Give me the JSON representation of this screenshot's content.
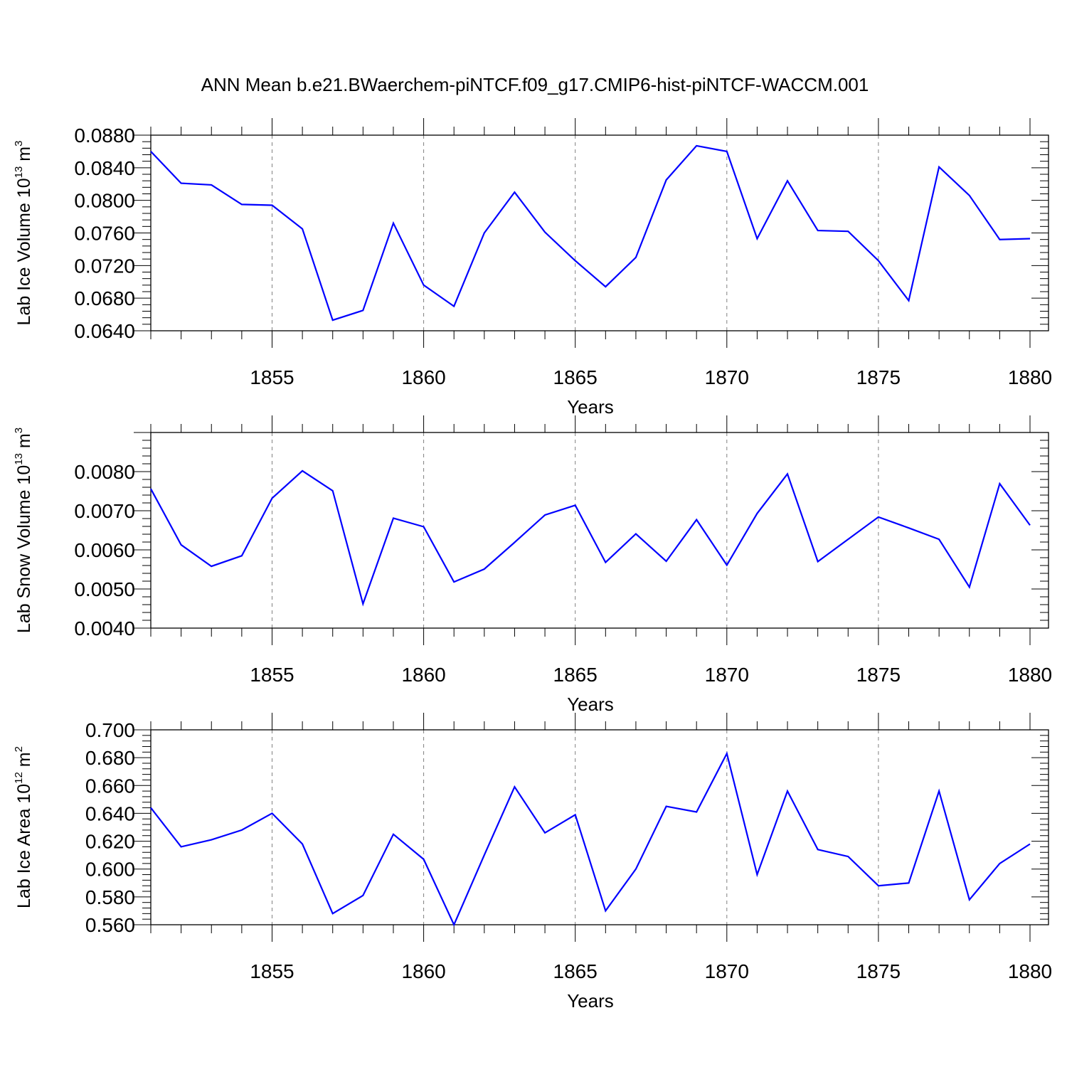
{
  "title": "ANN Mean b.e21.BWaerchem-piNTCF.f09_g17.CMIP6-hist-piNTCF-WACCM.001",
  "colors": {
    "line": "#0000ff",
    "axis": "#000000",
    "grid": "#808080"
  },
  "chart_data": [
    {
      "type": "line",
      "ylabel": {
        "text": "Lab Ice Volume 10",
        "exp": "13",
        "unit": " m",
        "unit_exp": "3"
      },
      "xlabel": "Years",
      "xlim": [
        1851,
        1880
      ],
      "ylim": [
        0.064,
        0.088
      ],
      "ytick_values": [
        0.064,
        0.068,
        0.072,
        0.076,
        0.08,
        0.084,
        0.088
      ],
      "yticks": [
        "0.0640",
        "0.0680",
        "0.0720",
        "0.0760",
        "0.0800",
        "0.0840",
        "0.0880"
      ],
      "ygrid": false,
      "xgrid": "dashed at major ticks",
      "xticks": [
        "1855",
        "1860",
        "1865",
        "1870",
        "1875",
        "1880"
      ],
      "xtick_values": [
        1855,
        1860,
        1865,
        1870,
        1875,
        1880
      ],
      "series": [
        {
          "x": [
            1851,
            1852,
            1853,
            1854,
            1855,
            1856,
            1857,
            1858,
            1859,
            1860,
            1861,
            1862,
            1863,
            1864,
            1865,
            1866,
            1867,
            1868,
            1869,
            1870,
            1871,
            1872,
            1873,
            1874,
            1875,
            1876,
            1877,
            1878,
            1879,
            1880
          ],
          "values": [
            0.086,
            0.0821,
            0.0819,
            0.0795,
            0.0794,
            0.0765,
            0.0653,
            0.0665,
            0.0772,
            0.0696,
            0.067,
            0.076,
            0.081,
            0.0761,
            0.0726,
            0.0694,
            0.073,
            0.0825,
            0.0867,
            0.086,
            0.0753,
            0.0824,
            0.0763,
            0.0762,
            0.0726,
            0.0677,
            0.0841,
            0.0806,
            0.0752,
            0.0753
          ]
        }
      ]
    },
    {
      "type": "line",
      "ylabel": {
        "text": "Lab Snow Volume 10",
        "exp": "13",
        "unit": " m",
        "unit_exp": "3"
      },
      "xlabel": "Years",
      "xlim": [
        1851,
        1880
      ],
      "ylim": [
        0.004,
        0.009
      ],
      "ytick_values": [
        0.004,
        0.005,
        0.006,
        0.007,
        0.008
      ],
      "yticks": [
        "0.0040",
        "0.0050",
        "0.0060",
        "0.0070",
        "0.0080"
      ],
      "ygrid": false,
      "xgrid": "dashed at major ticks",
      "xticks": [
        "1855",
        "1860",
        "1865",
        "1870",
        "1875",
        "1880"
      ],
      "xtick_values": [
        1855,
        1860,
        1865,
        1870,
        1875,
        1880
      ],
      "series": [
        {
          "x": [
            1851,
            1852,
            1853,
            1854,
            1855,
            1856,
            1857,
            1858,
            1859,
            1860,
            1861,
            1862,
            1863,
            1864,
            1865,
            1866,
            1867,
            1868,
            1869,
            1870,
            1871,
            1872,
            1873,
            1874,
            1875,
            1876,
            1877,
            1878,
            1879,
            1880
          ],
          "values": [
            0.00756,
            0.00613,
            0.00558,
            0.00585,
            0.00732,
            0.00802,
            0.00751,
            0.00462,
            0.00681,
            0.00659,
            0.00518,
            0.00551,
            0.00619,
            0.00689,
            0.00714,
            0.00568,
            0.00641,
            0.00571,
            0.00677,
            0.00561,
            0.00693,
            0.00794,
            0.0057,
            0.00627,
            0.00684,
            0.00656,
            0.00627,
            0.00505,
            0.00769,
            0.00663
          ]
        }
      ]
    },
    {
      "type": "line",
      "ylabel": {
        "text": "Lab Ice Area 10",
        "exp": "12",
        "unit": " m",
        "unit_exp": "2"
      },
      "xlabel": "Years",
      "xlim": [
        1851,
        1880
      ],
      "ylim": [
        0.56,
        0.7
      ],
      "ytick_values": [
        0.56,
        0.58,
        0.6,
        0.62,
        0.64,
        0.66,
        0.68,
        0.7
      ],
      "yticks": [
        "0.560",
        "0.580",
        "0.600",
        "0.620",
        "0.640",
        "0.660",
        "0.680",
        "0.700"
      ],
      "ygrid": false,
      "xgrid": "dashed at major ticks",
      "xticks": [
        "1855",
        "1860",
        "1865",
        "1870",
        "1875",
        "1880"
      ],
      "xtick_values": [
        1855,
        1860,
        1865,
        1870,
        1875,
        1880
      ],
      "series": [
        {
          "x": [
            1851,
            1852,
            1853,
            1854,
            1855,
            1856,
            1857,
            1858,
            1859,
            1860,
            1861,
            1862,
            1863,
            1864,
            1865,
            1866,
            1867,
            1868,
            1869,
            1870,
            1871,
            1872,
            1873,
            1874,
            1875,
            1876,
            1877,
            1878,
            1879,
            1880
          ],
          "values": [
            0.644,
            0.616,
            0.621,
            0.628,
            0.64,
            0.618,
            0.568,
            0.581,
            0.625,
            0.607,
            0.56,
            0.61,
            0.659,
            0.626,
            0.639,
            0.57,
            0.6,
            0.645,
            0.641,
            0.683,
            0.596,
            0.656,
            0.614,
            0.609,
            0.588,
            0.59,
            0.656,
            0.578,
            0.604,
            0.618
          ]
        }
      ]
    }
  ]
}
